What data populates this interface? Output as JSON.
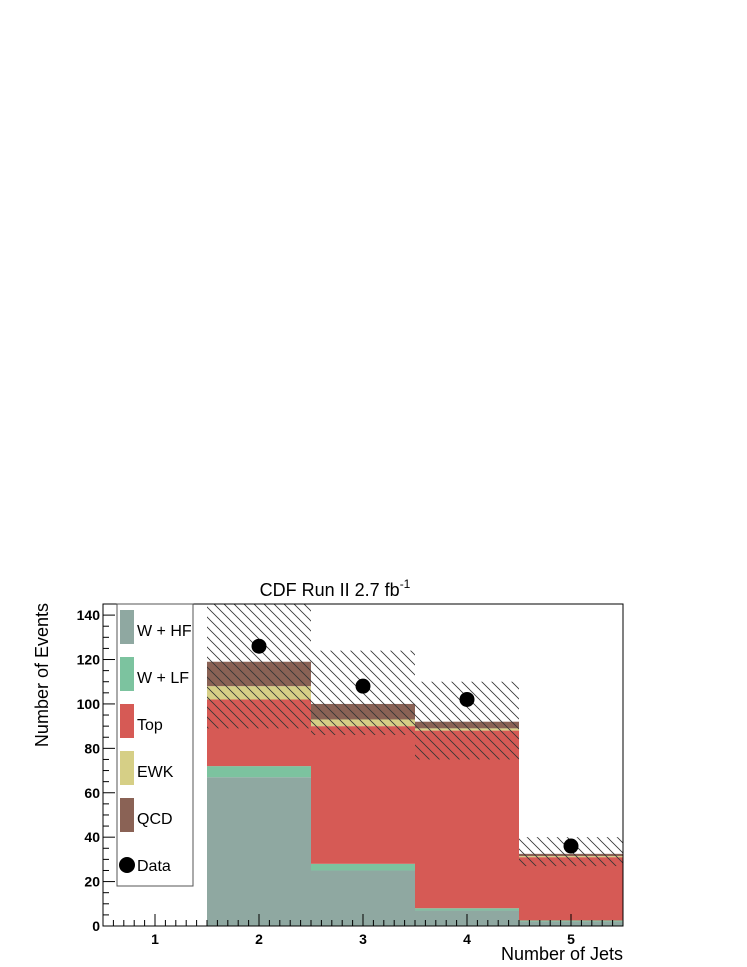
{
  "chart_data": {
    "type": "bar",
    "stacked": true,
    "title": "CDF Run II 2.7 fb",
    "title_superscript": "-1",
    "xlabel": "Number of Jets",
    "ylabel": "Number of Events",
    "categories": [
      "1",
      "2",
      "3",
      "4",
      "5"
    ],
    "xlim": [
      0.5,
      5.5
    ],
    "ylim": [
      0,
      145
    ],
    "yticks": [
      0,
      20,
      40,
      60,
      80,
      100,
      120,
      140
    ],
    "series": [
      {
        "name": "W + HF",
        "color": "#8fa8a1",
        "values": [
          0,
          67,
          25,
          7,
          2
        ]
      },
      {
        "name": "W + LF",
        "color": "#7cc39f",
        "values": [
          0,
          5,
          3,
          1,
          0.5
        ]
      },
      {
        "name": "Top",
        "color": "#d65a55",
        "values": [
          0,
          30,
          62,
          80,
          28.5
        ]
      },
      {
        "name": "EWK",
        "color": "#d6cf86",
        "values": [
          0,
          6,
          3,
          1,
          0.5
        ]
      },
      {
        "name": "QCD",
        "color": "#8a6255",
        "values": [
          0,
          11,
          7,
          3,
          1
        ]
      }
    ],
    "uncertainty": {
      "center": [
        0,
        119,
        105,
        92,
        34
      ],
      "low": [
        0,
        89,
        86,
        75,
        27
      ],
      "high": [
        0,
        145,
        124,
        110,
        40
      ]
    },
    "data_points": {
      "name": "Data",
      "x": [
        2,
        3,
        4,
        5
      ],
      "y": [
        126,
        108,
        102,
        36
      ]
    },
    "legend": {
      "position": "top-left",
      "entries": [
        "W + HF",
        "W + LF",
        "Top",
        "EWK",
        "QCD",
        "Data"
      ]
    }
  }
}
